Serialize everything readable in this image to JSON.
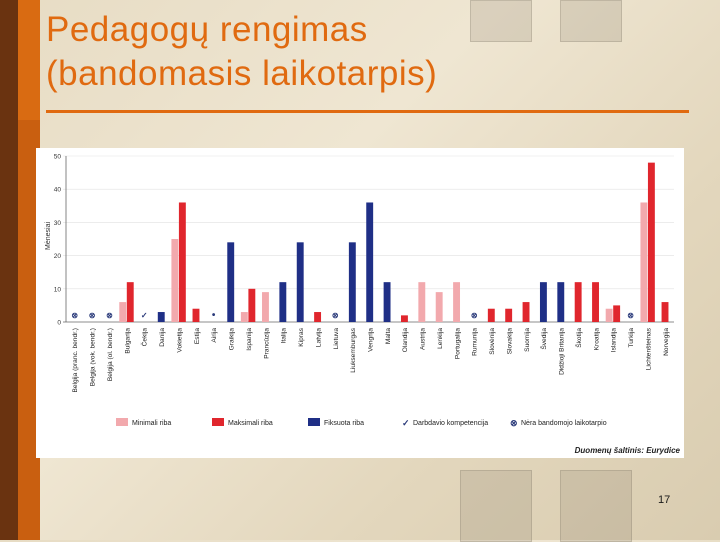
{
  "slide": {
    "title_line1": "Pedagogų rengimas",
    "title_line2": "(bandomasis laikotarpis)",
    "page_number": "17",
    "accent_color": "#e06a10"
  },
  "chart_data": {
    "type": "bar",
    "ylabel": "Mėnesiai",
    "ylim": [
      0,
      50
    ],
    "yticks": [
      0,
      10,
      20,
      30,
      40,
      50
    ],
    "source": "Duomenų šaltinis: Eurydice",
    "colors": {
      "min": "#f2a9ad",
      "max": "#e0262d",
      "fixed": "#1f2f86"
    },
    "categories": [
      "Belgija (pranc. bendr.)",
      "Belgija (vok. bendr.)",
      "Belgija (ol. bendr.)",
      "Bulgarija",
      "Čekija",
      "Danija",
      "Vokietija",
      "Estija",
      "Airija",
      "Graikija",
      "Ispanija",
      "Prancūzija",
      "Italija",
      "Kipras",
      "Latvija",
      "Lietuva",
      "Liuksemburgas",
      "Vengrija",
      "Malta",
      "Olandija",
      "Austrija",
      "Lenkija",
      "Portugalija",
      "Rumunija",
      "Slovėnija",
      "Slovakija",
      "Suomija",
      "Švedija",
      "Didžioji Britanija",
      "Škotija",
      "Kroatija",
      "Islandija",
      "Turkija",
      "Lichtenšteinas",
      "Norvegija"
    ],
    "series": [
      {
        "name": "Minimali riba",
        "key": "min",
        "values": [
          null,
          null,
          null,
          6,
          null,
          null,
          25,
          null,
          null,
          null,
          3,
          9,
          null,
          null,
          null,
          null,
          null,
          null,
          null,
          null,
          12,
          9,
          12,
          null,
          null,
          null,
          null,
          null,
          null,
          null,
          null,
          4,
          null,
          36,
          null
        ]
      },
      {
        "name": "Maksimali riba",
        "key": "max",
        "values": [
          null,
          null,
          null,
          12,
          null,
          null,
          36,
          4,
          null,
          null,
          10,
          null,
          null,
          null,
          3,
          null,
          null,
          null,
          null,
          2,
          null,
          null,
          null,
          null,
          4,
          4,
          6,
          null,
          null,
          12,
          12,
          5,
          null,
          48,
          6
        ]
      },
      {
        "name": "Fiksuota riba",
        "key": "fixed",
        "values": [
          null,
          null,
          null,
          null,
          null,
          3,
          null,
          null,
          null,
          24,
          null,
          null,
          12,
          24,
          null,
          null,
          24,
          36,
          12,
          null,
          null,
          null,
          null,
          null,
          null,
          null,
          null,
          12,
          12,
          null,
          null,
          null,
          null,
          null,
          null
        ]
      }
    ],
    "markers": [
      {
        "category": "Belgija (pranc. bendr.)",
        "symbol": "⊗"
      },
      {
        "category": "Belgija (vok. bendr.)",
        "symbol": "⊗"
      },
      {
        "category": "Belgija (ol. bendr.)",
        "symbol": "⊗"
      },
      {
        "category": "Čekija",
        "symbol": "✓"
      },
      {
        "category": "Airija",
        "symbol": "•"
      },
      {
        "category": "Lietuva",
        "symbol": "⊗"
      },
      {
        "category": "Rumunija",
        "symbol": "⊗"
      },
      {
        "category": "Turkija",
        "symbol": "⊗"
      }
    ],
    "legend": [
      {
        "label": "Minimali riba",
        "kind": "swatch",
        "color": "#f2a9ad"
      },
      {
        "label": "Maksimali riba",
        "kind": "swatch",
        "color": "#e0262d"
      },
      {
        "label": "Fiksuota riba",
        "kind": "swatch",
        "color": "#1f2f86"
      },
      {
        "label": "Darbdavio kompetencija",
        "kind": "symbol",
        "symbol": "✓"
      },
      {
        "label": "Nėra bandomojo laikotarpio",
        "kind": "symbol",
        "symbol": "⊗"
      }
    ]
  }
}
